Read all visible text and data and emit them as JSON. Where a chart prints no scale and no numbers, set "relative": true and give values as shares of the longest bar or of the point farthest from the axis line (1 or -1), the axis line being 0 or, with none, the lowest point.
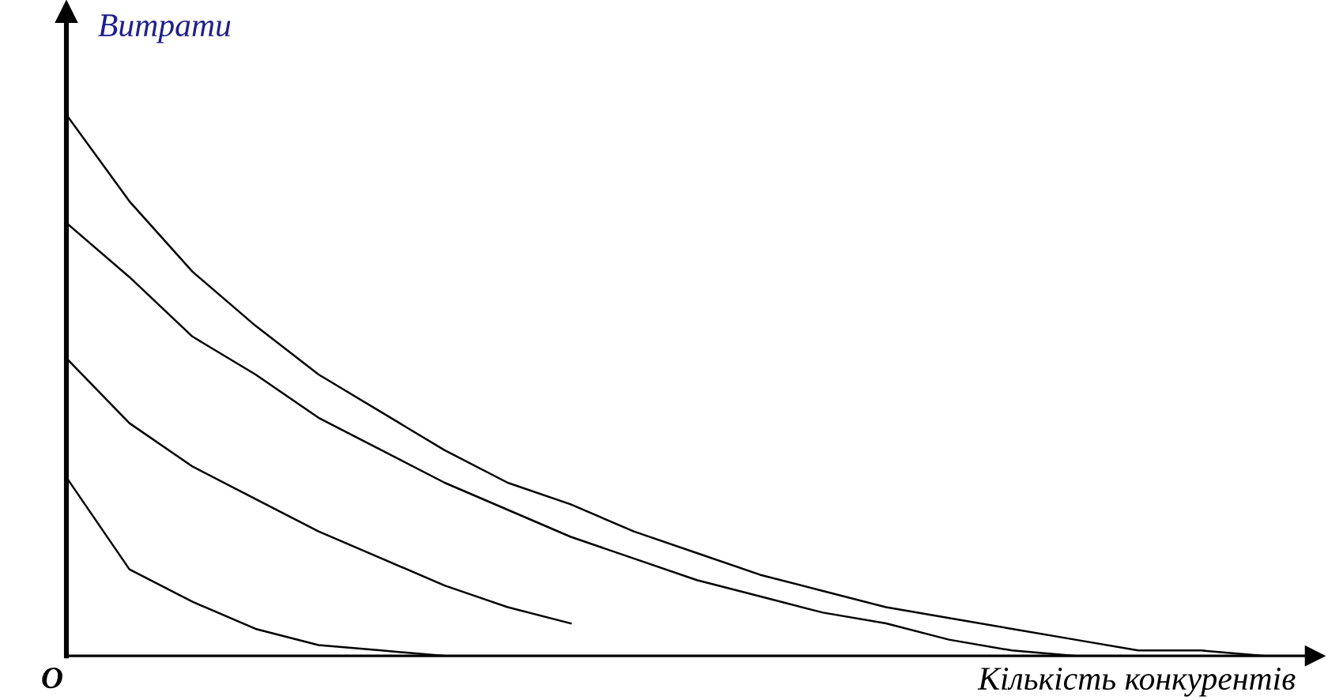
{
  "chart_data": {
    "type": "line",
    "relative": true,
    "ylabel": "Витрати",
    "xlabel": "Кількість конкурентів",
    "annotations": [
      "O"
    ],
    "categories": [
      null,
      null,
      null,
      null,
      null,
      null,
      null,
      null,
      null,
      null,
      null,
      null,
      null,
      null,
      null,
      null,
      null,
      null,
      null,
      null
    ],
    "series": [
      {
        "color": "#000000",
        "values": [
          1,
          0.84,
          0.71,
          0.61,
          0.52,
          0.45,
          0.38,
          0.32,
          0.28,
          0.23,
          0.19,
          0.15,
          0.12,
          0.09,
          0.07,
          0.05,
          0.03,
          0.01,
          0.01,
          0
        ]
      },
      {
        "color": "#000000",
        "values": [
          0.8,
          0.7,
          0.59,
          0.52,
          0.44,
          0.38,
          0.32,
          0.27,
          0.22,
          0.18,
          0.14,
          0.11,
          0.08,
          0.06,
          0.03,
          0.01,
          0,
          null,
          null,
          null
        ]
      },
      {
        "color": "#000000",
        "values": [
          0.55,
          0.43,
          0.35,
          0.29,
          0.23,
          0.18,
          0.13,
          0.09,
          0.06,
          null,
          null,
          null,
          null,
          null,
          null,
          null,
          null,
          null,
          null,
          null
        ]
      },
      {
        "color": "#000000",
        "values": [
          0.33,
          0.16,
          0.1,
          0.05,
          0.02,
          0.01,
          0,
          null,
          null,
          null,
          null,
          null,
          null,
          null,
          null,
          null,
          null,
          null,
          null,
          null
        ]
      }
    ],
    "marker": "none",
    "line_style": "solid"
  }
}
